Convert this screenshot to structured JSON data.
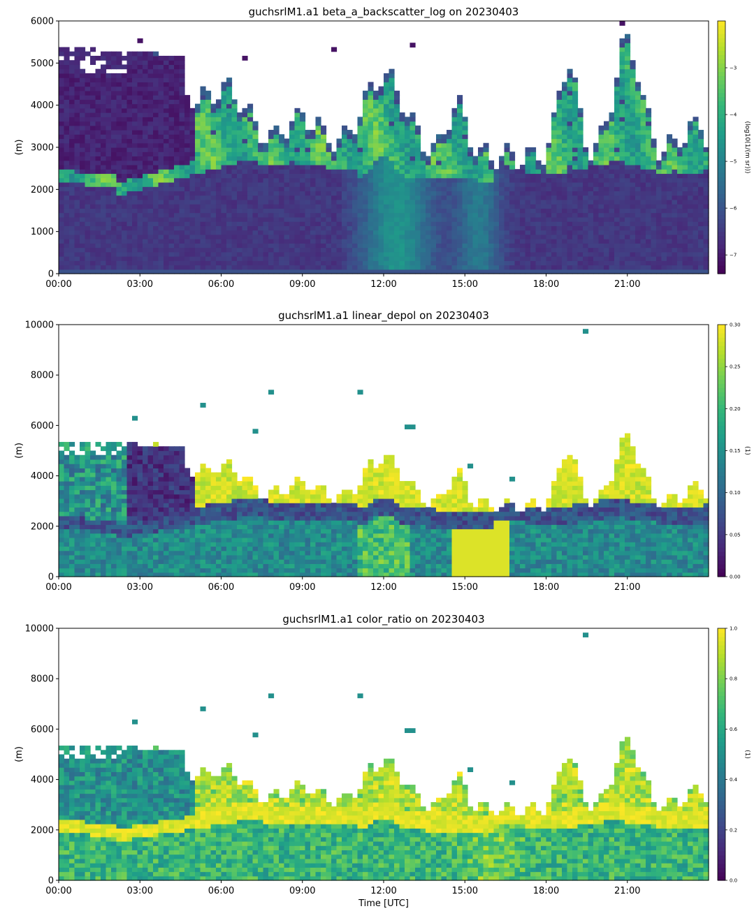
{
  "figure": {
    "xlabel": "Time [UTC]"
  },
  "chart_data": [
    {
      "type": "heatmap",
      "title": "guchsrlM1.a1 beta_a_backscatter_log on 20230403",
      "ylabel": "(m)",
      "xlabel": "",
      "x_ticks": [
        "00:00",
        "03:00",
        "06:00",
        "09:00",
        "12:00",
        "15:00",
        "18:00",
        "21:00"
      ],
      "x_range_hours": [
        0,
        24
      ],
      "y_ticks": [
        0,
        1000,
        2000,
        3000,
        4000,
        5000,
        6000
      ],
      "ylim": [
        0,
        6000
      ],
      "colorbar": {
        "label": "(log10(1/(m sr)))",
        "ticks": [
          -7,
          -6,
          -5,
          -4,
          -3
        ],
        "range": [
          -7.4,
          -2.0
        ],
        "colormap": "viridis"
      },
      "field": "backscatter",
      "grid": false
    },
    {
      "type": "heatmap",
      "title": "guchsrlM1.a1 linear_depol on 20230403",
      "ylabel": "(m)",
      "xlabel": "",
      "x_ticks": [
        "00:00",
        "03:00",
        "06:00",
        "09:00",
        "12:00",
        "15:00",
        "18:00",
        "21:00"
      ],
      "x_range_hours": [
        0,
        24
      ],
      "y_ticks": [
        0,
        2000,
        4000,
        6000,
        8000,
        10000
      ],
      "ylim": [
        0,
        10000
      ],
      "colorbar": {
        "label": "(1)",
        "ticks": [
          "0.00",
          "0.05",
          "0.10",
          "0.15",
          "0.20",
          "0.25",
          "0.30"
        ],
        "range": [
          0,
          0.3
        ],
        "colormap": "viridis"
      },
      "field": "depol",
      "grid": false
    },
    {
      "type": "heatmap",
      "title": "guchsrlM1.a1 color_ratio on 20230403",
      "ylabel": "(m)",
      "xlabel": "Time [UTC]",
      "x_ticks": [
        "00:00",
        "03:00",
        "06:00",
        "09:00",
        "12:00",
        "15:00",
        "18:00",
        "21:00"
      ],
      "x_range_hours": [
        0,
        24
      ],
      "y_ticks": [
        0,
        2000,
        4000,
        6000,
        8000,
        10000
      ],
      "ylim": [
        0,
        10000
      ],
      "colorbar": {
        "label": "(1)",
        "ticks": [
          "0.0",
          "0.2",
          "0.4",
          "0.6",
          "0.8",
          "1.0"
        ],
        "range": [
          0,
          1
        ],
        "colormap": "viridis"
      },
      "field": "color",
      "grid": false
    }
  ]
}
